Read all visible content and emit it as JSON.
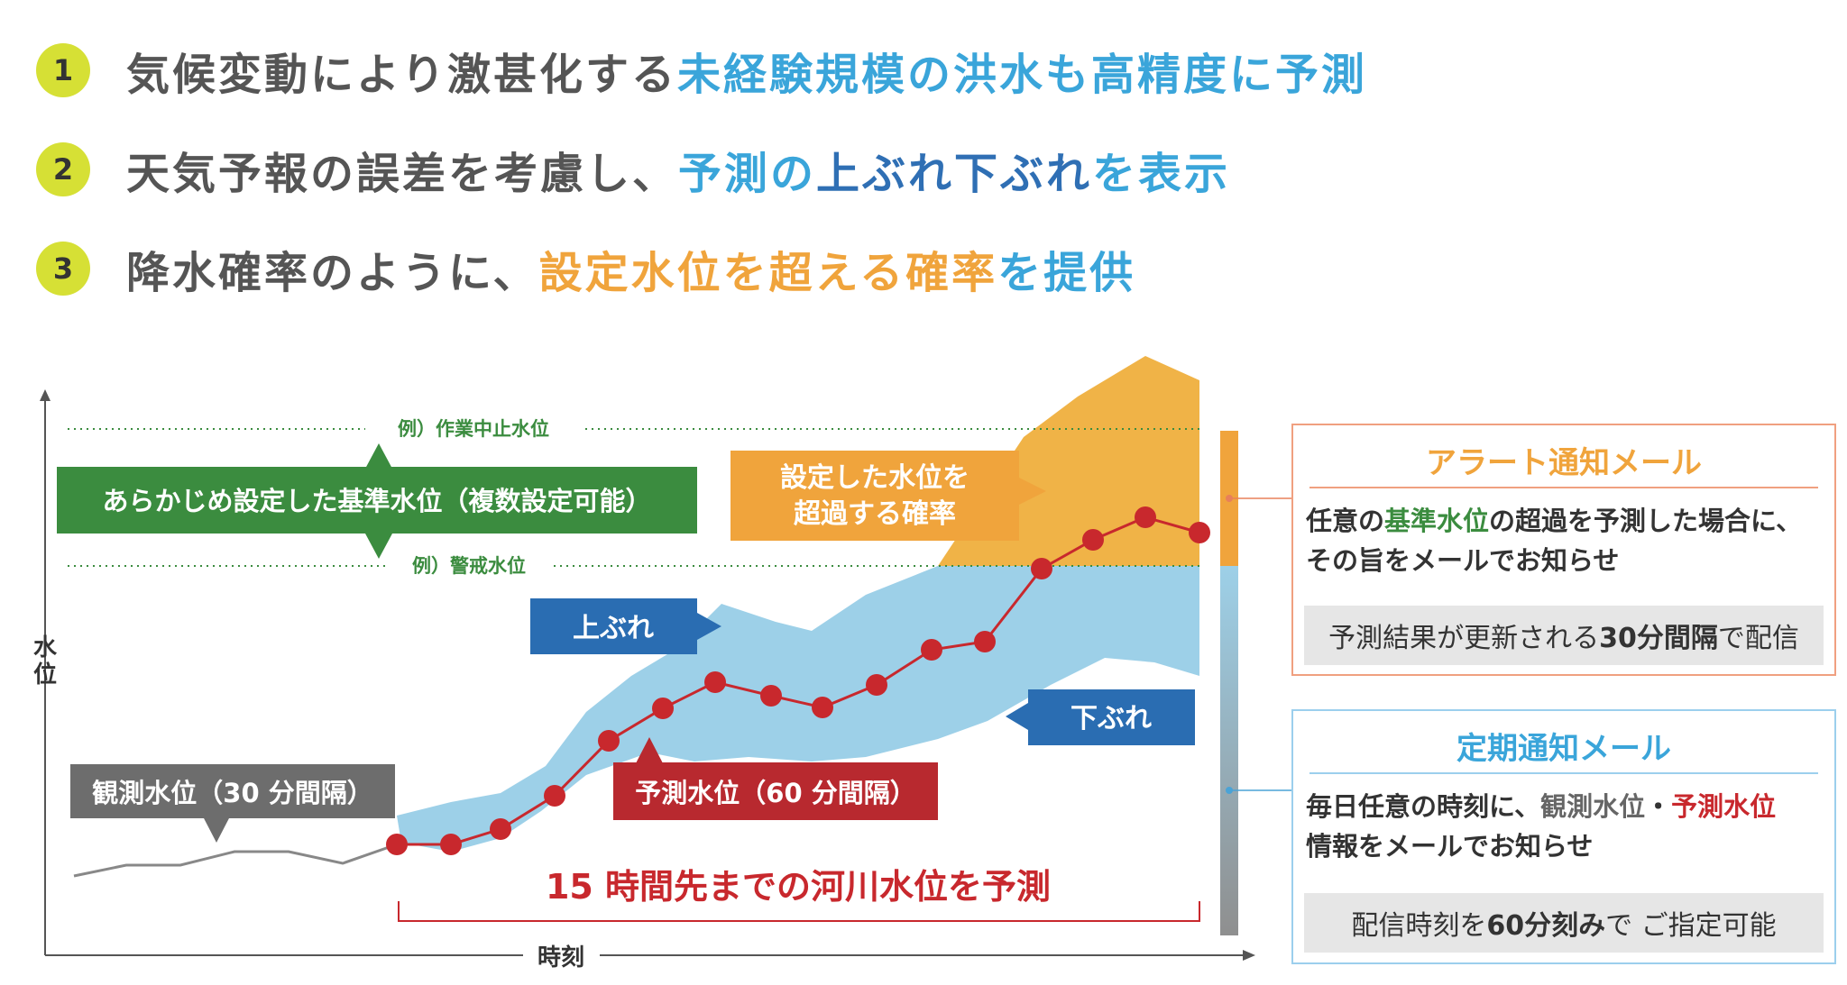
{
  "features": [
    {
      "num": "1",
      "parts": [
        {
          "text": "気候変動により激甚化する",
          "color": "gray"
        },
        {
          "text": "未経験規模の洪水も高精度に予測",
          "color": "blue"
        }
      ]
    },
    {
      "num": "2",
      "parts": [
        {
          "text": "天気予報の誤差を考慮し、",
          "color": "gray"
        },
        {
          "text": "予測の",
          "color": "blue"
        },
        {
          "text": "上ぶれ下ぶれ",
          "color": "dblue"
        },
        {
          "text": "を表示",
          "color": "blue"
        }
      ]
    },
    {
      "num": "3",
      "parts": [
        {
          "text": "降水確率のように、",
          "color": "gray"
        },
        {
          "text": "設定水位を超える確率",
          "color": "orange"
        },
        {
          "text": "を提供",
          "color": "blue"
        }
      ]
    }
  ],
  "diagram": {
    "y_axis_label_1": "水",
    "y_axis_label_2": "位",
    "x_axis_label": "時刻",
    "level_upper_label": "例）作業中止水位",
    "level_lower_label": "例）警戒水位",
    "threshold_box": "あらかじめ設定した基準水位（複数設定可能）",
    "prob_box_line1": "設定した水位を",
    "prob_box_line2": "超過する確率",
    "upper_label": "上ぶれ",
    "lower_label": "下ぶれ",
    "observed_label": "観測水位（30 分間隔）",
    "forecast_label": "予測水位（60 分間隔）",
    "horizon_label": "15 時間先までの河川水位を予測"
  },
  "alert_panel": {
    "title": "アラート通知メール",
    "body_line1_pre": "任意の",
    "body_line1_hl": "基準水位",
    "body_line1_post": "の超過を予測した場合に、",
    "body_line2": "その旨をメールでお知らせ",
    "bar_pre": "予測結果が更新される ",
    "bar_bold": "30分間隔",
    "bar_post": "で配信"
  },
  "periodic_panel": {
    "title": "定期通知メール",
    "body_line1_pre": "毎日任意の時刻に、",
    "body_line1_obs": "観測水位",
    "body_line1_sep": "・",
    "body_line1_fc": "予測水位",
    "body_line2": "情報をメールでお知らせ",
    "bar_pre": "配信時刻を",
    "bar_bold": "60分刻み",
    "bar_post": "で ご指定可能"
  },
  "colors": {
    "badge": "#d6e035",
    "green": "#3b8c3f",
    "orange": "#f0a43c",
    "light_blue": "#9dd0e8",
    "dark_blue": "#2a6db2",
    "red": "#c8282d",
    "gray": "#777777"
  }
}
